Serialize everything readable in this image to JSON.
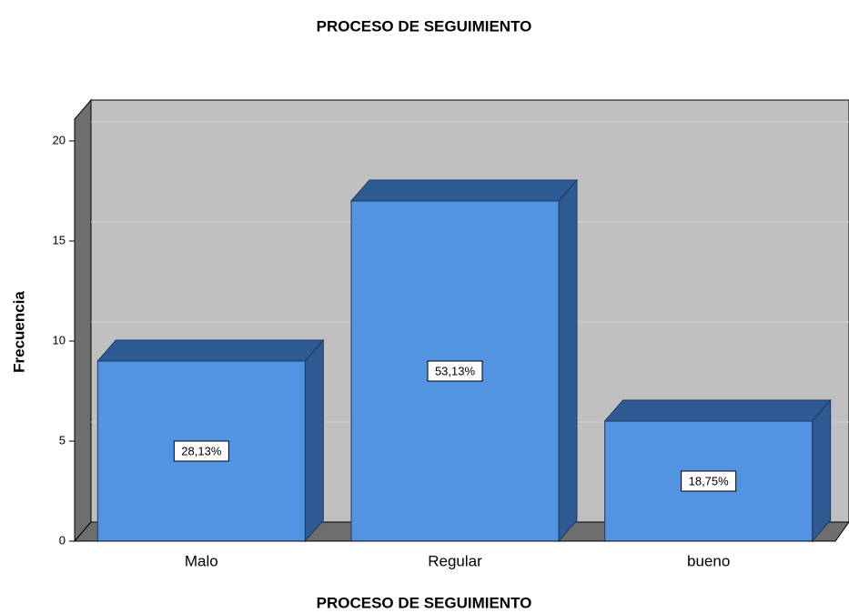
{
  "chart_data": {
    "type": "bar3d",
    "title": "PROCESO DE SEGUIMIENTO",
    "x_label": "PROCESO DE SEGUIMIENTO",
    "y_label": "Frecuencia",
    "categories": [
      "Malo",
      "Regular",
      "bueno"
    ],
    "values": [
      9,
      17,
      6
    ],
    "percentages": [
      28.13,
      53.13,
      18.75
    ],
    "percentage_labels": [
      "28,13%",
      "53,13%",
      "18,75%"
    ],
    "color": "#5294e2",
    "ylim": [
      0,
      20
    ],
    "yticks": [
      0,
      5,
      10,
      15,
      20
    ],
    "grid": true
  }
}
